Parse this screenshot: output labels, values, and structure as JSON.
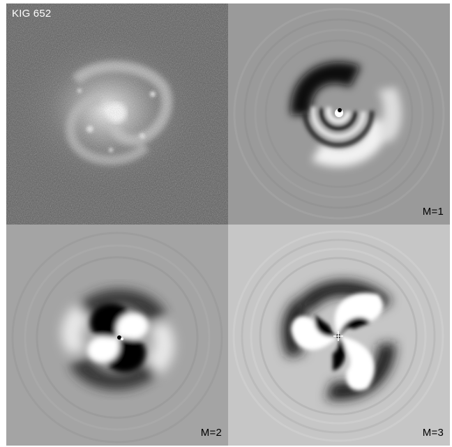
{
  "panels": [
    {
      "id": "observed",
      "label": "KIG 652",
      "description_kind": "galaxy-image"
    },
    {
      "id": "m1",
      "label": "M=1",
      "description_kind": "fourier-mode"
    },
    {
      "id": "m2",
      "label": "M=2",
      "description_kind": "fourier-mode"
    },
    {
      "id": "m3",
      "label": "M=3",
      "description_kind": "fourier-mode"
    }
  ],
  "colors": {
    "background": "#ffffff",
    "label_light": "#ffffff",
    "label_dark": "#000000",
    "noise_gray": "#5a5a5a"
  }
}
